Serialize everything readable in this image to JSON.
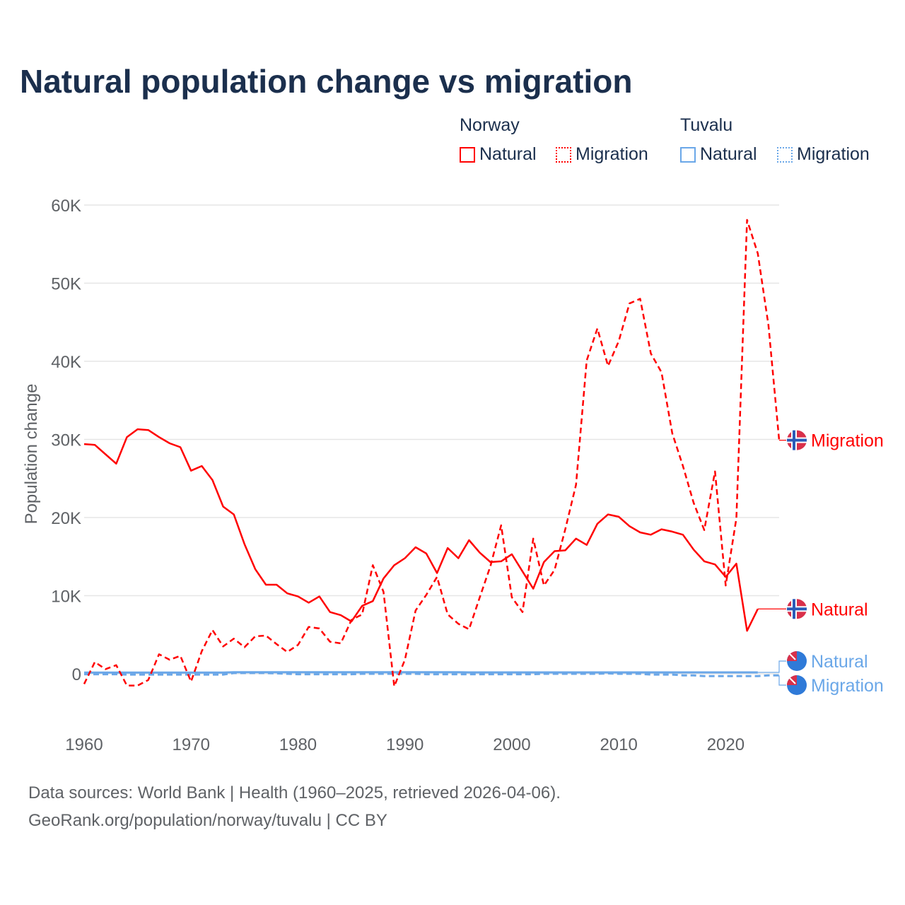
{
  "title": "Natural population change vs migration",
  "legend": {
    "groups": [
      {
        "name": "Norway",
        "items": [
          "Natural",
          "Migration"
        ],
        "color": "#ff0000"
      },
      {
        "name": "Tuvalu",
        "items": [
          "Natural",
          "Migration"
        ],
        "color": "#6aa7e8"
      }
    ]
  },
  "footer": {
    "line1": "Data sources: World Bank | Health (1960–2025, retrieved 2026-04-06).",
    "line2": "GeoRank.org/population/norway/tuvalu | CC BY"
  },
  "chart_data": {
    "type": "line",
    "title": "Natural population change vs migration",
    "xlabel": "",
    "ylabel": "Population change",
    "xlim": [
      1960,
      2025
    ],
    "ylim": [
      -6000,
      60000
    ],
    "xticks": [
      "1960",
      "1970",
      "1980",
      "1990",
      "2000",
      "2010",
      "2020"
    ],
    "yticks": [
      {
        "v": 0,
        "label": "0"
      },
      {
        "v": 10000,
        "label": "10K"
      },
      {
        "v": 20000,
        "label": "20K"
      },
      {
        "v": 30000,
        "label": "30K"
      },
      {
        "v": 40000,
        "label": "40K"
      },
      {
        "v": 50000,
        "label": "50K"
      },
      {
        "v": 60000,
        "label": "60K"
      }
    ],
    "grid": true,
    "series": [
      {
        "name": "Norway Natural",
        "label": "Natural",
        "country": "Norway",
        "color": "#ff0000",
        "dash": false,
        "start": 1960,
        "values": [
          29400,
          29300,
          28100,
          26900,
          30300,
          31300,
          31200,
          30300,
          29500,
          29000,
          26000,
          26600,
          24800,
          21400,
          20400,
          16600,
          13400,
          11400,
          11400,
          10300,
          9900,
          9100,
          9900,
          7900,
          7500,
          6700,
          8700,
          9300,
          12200,
          13900,
          14800,
          16200,
          15400,
          12900,
          16100,
          14800,
          17100,
          15500,
          14300,
          14400,
          15300,
          13100,
          10900,
          14300,
          15700,
          15800,
          17300,
          16500,
          19200,
          20400,
          20100,
          18900,
          18100,
          17800,
          18500,
          18200,
          17800,
          15900,
          14400,
          14000,
          12400,
          14100,
          5500,
          8300
        ]
      },
      {
        "name": "Norway Migration",
        "label": "Migration",
        "country": "Norway",
        "color": "#ff0000",
        "dash": true,
        "start": 1960,
        "values": [
          -1300,
          1500,
          600,
          1100,
          -1500,
          -1500,
          -800,
          2500,
          1800,
          2300,
          -1000,
          2900,
          5600,
          3500,
          4500,
          3400,
          4800,
          4900,
          3800,
          2800,
          3700,
          6000,
          5800,
          4100,
          3900,
          6900,
          7600,
          13900,
          10500,
          -1600,
          1800,
          8100,
          10100,
          12400,
          7600,
          6400,
          5700,
          9800,
          13800,
          19000,
          9800,
          7900,
          17300,
          11300,
          13300,
          18500,
          24200,
          40100,
          44200,
          39400,
          42600,
          47400,
          48000,
          41000,
          38600,
          30800,
          26600,
          21900,
          18400,
          25900,
          11300,
          19900,
          58100,
          53800,
          44600,
          29900
        ]
      },
      {
        "name": "Tuvalu Natural",
        "label": "Natural",
        "country": "Tuvalu",
        "color": "#6aa7e8",
        "dash": false,
        "start": 1960,
        "values": [
          150,
          150,
          150,
          150,
          150,
          150,
          150,
          150,
          150,
          150,
          150,
          150,
          150,
          150,
          200,
          200,
          200,
          200,
          200,
          200,
          200,
          200,
          200,
          200,
          200,
          200,
          200,
          200,
          200,
          200,
          200,
          200,
          200,
          200,
          200,
          200,
          180,
          180,
          180,
          180,
          180,
          180,
          180,
          180,
          180,
          180,
          180,
          180,
          180,
          180,
          180,
          180,
          180,
          180,
          180,
          180,
          180,
          180,
          180,
          180,
          180,
          180,
          180,
          180
        ]
      },
      {
        "name": "Tuvalu Migration",
        "label": "Migration",
        "country": "Tuvalu",
        "color": "#6aa7e8",
        "dash": true,
        "start": 1960,
        "values": [
          -50,
          -50,
          -50,
          -50,
          -100,
          -100,
          -100,
          -100,
          -100,
          -100,
          -100,
          -100,
          -100,
          -100,
          100,
          100,
          100,
          100,
          50,
          0,
          -50,
          -50,
          -50,
          -50,
          -50,
          -50,
          0,
          0,
          0,
          0,
          0,
          0,
          -50,
          -50,
          -50,
          -50,
          -50,
          -50,
          -50,
          -50,
          -50,
          -50,
          -50,
          0,
          0,
          0,
          0,
          0,
          0,
          50,
          0,
          0,
          0,
          -100,
          -100,
          -100,
          -200,
          -200,
          -300,
          -300,
          -300,
          -300,
          -300,
          -300,
          -200,
          -200
        ]
      }
    ]
  }
}
